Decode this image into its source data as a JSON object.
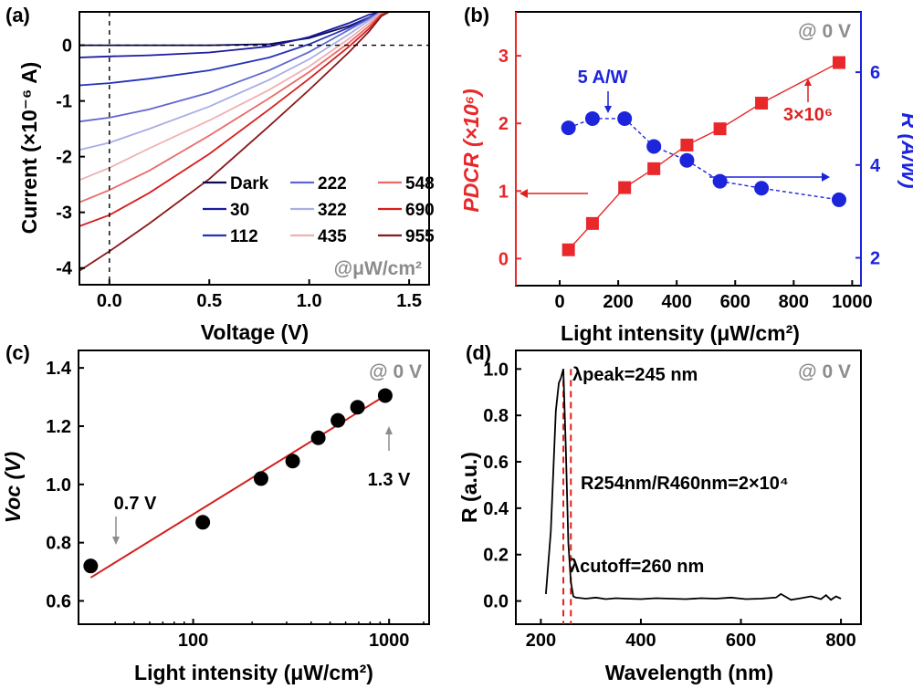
{
  "chart_data": [
    {
      "panel": "(a)",
      "type": "line",
      "xlabel": "Voltage (V)",
      "ylabel": "Current (×10⁻⁶ A)",
      "xlim": [
        -0.15,
        1.6
      ],
      "ylim": [
        -4.3,
        0.6
      ],
      "xticks": [
        0.0,
        0.5,
        1.0,
        1.5
      ],
      "xtick_labels": [
        "0.0",
        "0.5",
        "1.0",
        "1.5"
      ],
      "yticks": [
        0,
        -1,
        -2,
        -3,
        -4
      ],
      "ytick_labels": [
        "0",
        "-1",
        "-2",
        "-3",
        "-4"
      ],
      "condition": "@μW/cm²",
      "legend_position": "lower-right",
      "x_shared": [
        -0.15,
        0.0,
        0.2,
        0.5,
        0.8,
        1.0,
        1.2,
        1.3,
        1.36,
        1.4
      ],
      "series": [
        {
          "name": "Dark",
          "color": "#0a0a5a",
          "values": [
            0.0,
            0.0,
            0.0,
            0.0,
            0.02,
            0.13,
            0.35,
            0.5,
            0.6,
            0.6
          ]
        },
        {
          "name": "30",
          "color": "#1a1aa0",
          "values": [
            -0.22,
            -0.2,
            -0.18,
            -0.13,
            -0.02,
            0.15,
            0.4,
            0.55,
            0.6,
            0.6
          ]
        },
        {
          "name": "112",
          "color": "#2433b8",
          "values": [
            -0.72,
            -0.68,
            -0.6,
            -0.45,
            -0.22,
            0.02,
            0.32,
            0.5,
            0.6,
            0.6
          ]
        },
        {
          "name": "222",
          "color": "#6068d0",
          "values": [
            -1.37,
            -1.3,
            -1.15,
            -0.85,
            -0.45,
            -0.12,
            0.28,
            0.48,
            0.6,
            0.6
          ]
        },
        {
          "name": "322",
          "color": "#a9aee6",
          "values": [
            -1.88,
            -1.75,
            -1.5,
            -1.1,
            -0.62,
            -0.25,
            0.2,
            0.45,
            0.6,
            0.6
          ]
        },
        {
          "name": "435",
          "color": "#f0b0b0",
          "values": [
            -2.42,
            -2.2,
            -1.85,
            -1.35,
            -0.8,
            -0.38,
            0.12,
            0.4,
            0.58,
            0.6
          ]
        },
        {
          "name": "548",
          "color": "#e86b6b",
          "values": [
            -2.82,
            -2.6,
            -2.25,
            -1.62,
            -0.95,
            -0.48,
            0.05,
            0.35,
            0.56,
            0.6
          ]
        },
        {
          "name": "690",
          "color": "#d61e1e",
          "values": [
            -3.25,
            -3.05,
            -2.65,
            -1.95,
            -1.15,
            -0.6,
            -0.02,
            0.3,
            0.54,
            0.6
          ]
        },
        {
          "name": "955",
          "color": "#8a1818",
          "values": [
            -4.05,
            -3.7,
            -3.2,
            -2.4,
            -1.45,
            -0.8,
            -0.12,
            0.25,
            0.52,
            0.6
          ]
        }
      ]
    },
    {
      "panel": "(b)",
      "type": "scatter",
      "xlabel": "Light intensity (μW/cm²)",
      "ylabel_left": "PDCR (×10⁶)",
      "ylabel_right": "R (A/W)",
      "xlim": [
        -150,
        1030
      ],
      "ylim_left": [
        -0.4,
        3.65
      ],
      "ylim_right": [
        1.4,
        7.3
      ],
      "xticks": [
        0,
        200,
        400,
        600,
        800,
        1000
      ],
      "xtick_labels": [
        "0",
        "200",
        "400",
        "600",
        "800",
        "1000"
      ],
      "yticks_left": [
        0,
        1,
        2,
        3
      ],
      "ytick_labels_left": [
        "0",
        "1",
        "2",
        "3"
      ],
      "yticks_right": [
        2,
        4,
        6
      ],
      "ytick_labels_right": [
        "2",
        "4",
        "6"
      ],
      "condition": "@ 0 V",
      "series": [
        {
          "axis": "left",
          "marker": "square",
          "color": "#e8282a",
          "x": [
            30,
            112,
            222,
            322,
            435,
            548,
            690,
            955
          ],
          "values": [
            0.13,
            0.52,
            1.05,
            1.33,
            1.68,
            1.92,
            2.3,
            2.9
          ]
        },
        {
          "axis": "right",
          "marker": "circle",
          "color": "#1c24dc",
          "x": [
            30,
            112,
            222,
            322,
            435,
            548,
            690,
            955
          ],
          "values": [
            4.8,
            5.0,
            5.0,
            4.4,
            4.1,
            3.65,
            3.5,
            3.25
          ]
        }
      ],
      "annotations": [
        "5 A/W",
        "3×10⁶"
      ]
    },
    {
      "panel": "(c)",
      "type": "scatter",
      "xlabel": "Light intensity (μW/cm²)",
      "ylabel": "Voc (V)",
      "xscale": "log",
      "xlim": [
        26,
        1600
      ],
      "ylim": [
        0.52,
        1.46
      ],
      "xticks": [
        100,
        1000
      ],
      "xtick_labels": [
        "100",
        "1000"
      ],
      "yticks": [
        0.6,
        0.8,
        1.0,
        1.2,
        1.4
      ],
      "ytick_labels": [
        "0.6",
        "0.8",
        "1.0",
        "1.2",
        "1.4"
      ],
      "condition": "@ 0 V",
      "x": [
        30,
        112,
        222,
        322,
        435,
        548,
        690,
        955
      ],
      "values": [
        0.72,
        0.87,
        1.02,
        1.08,
        1.16,
        1.22,
        1.265,
        1.305
      ],
      "fit_line": {
        "x": [
          30,
          955
        ],
        "y": [
          0.68,
          1.305
        ],
        "color": "#d42020"
      },
      "annotations": [
        "0.7 V",
        "1.3 V"
      ]
    },
    {
      "panel": "(d)",
      "type": "line",
      "xlabel": "Wavelength (nm)",
      "ylabel": "R (a.u.)",
      "xlim": [
        150,
        840
      ],
      "ylim": [
        -0.1,
        1.08
      ],
      "xticks": [
        200,
        400,
        600,
        800
      ],
      "xtick_labels": [
        "200",
        "400",
        "600",
        "800"
      ],
      "yticks": [
        0.0,
        0.2,
        0.4,
        0.6,
        0.8,
        1.0
      ],
      "ytick_labels": [
        "0.0",
        "0.2",
        "0.4",
        "0.6",
        "0.8",
        "1.0"
      ],
      "condition": "@ 0 V",
      "x": [
        210,
        220,
        230,
        236,
        240,
        245,
        250,
        255,
        260,
        265,
        270,
        290,
        310,
        330,
        350,
        370,
        400,
        430,
        460,
        490,
        520,
        550,
        580,
        610,
        640,
        670,
        680,
        700,
        720,
        740,
        760,
        770,
        780,
        790,
        800
      ],
      "values": [
        0.03,
        0.3,
        0.82,
        0.94,
        0.96,
        1.0,
        0.65,
        0.25,
        0.08,
        0.02,
        0.015,
        0.01,
        0.015,
        0.008,
        0.012,
        0.01,
        0.008,
        0.012,
        0.01,
        0.008,
        0.012,
        0.01,
        0.015,
        0.008,
        0.01,
        0.015,
        0.03,
        0.005,
        0.012,
        0.02,
        0.008,
        0.025,
        0.005,
        0.02,
        0.01
      ],
      "markers": [
        {
          "x": 245,
          "color": "#e02020"
        },
        {
          "x": 260,
          "color": "#e02020"
        }
      ],
      "annotations": [
        "λpeak=245 nm",
        "R254nm/R460nm=2×10⁴",
        "λcutoff=260 nm"
      ]
    }
  ]
}
